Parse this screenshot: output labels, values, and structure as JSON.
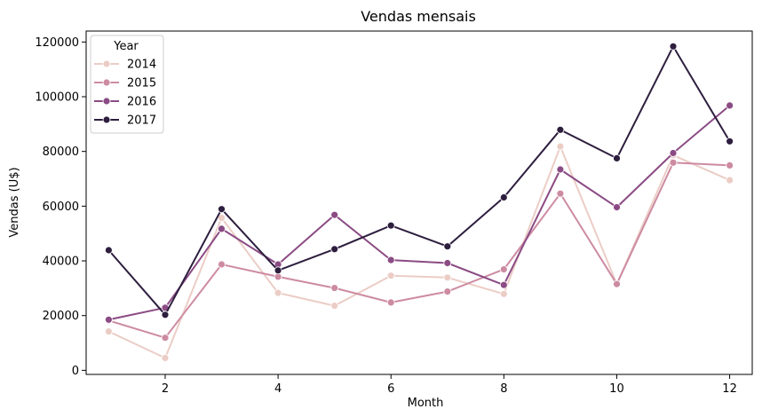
{
  "chart_data": {
    "type": "line",
    "title": "Vendas mensais",
    "xlabel": "Month",
    "ylabel": "Vendas (U$)",
    "x": [
      1,
      2,
      3,
      4,
      5,
      6,
      7,
      8,
      9,
      10,
      11,
      12
    ],
    "xlim": [
      0.6,
      12.4
    ],
    "ylim": [
      -1500,
      124000
    ],
    "xticks": [
      2,
      4,
      6,
      8,
      10,
      12
    ],
    "yticks": [
      0,
      20000,
      40000,
      60000,
      80000,
      100000,
      120000
    ],
    "grid": false,
    "legend": {
      "title": "Year",
      "placement": "top-left"
    },
    "series": [
      {
        "name": "2014",
        "color": "#ebcdc6",
        "values": [
          14200,
          4500,
          55700,
          28300,
          23600,
          34600,
          33900,
          27900,
          81800,
          31500,
          78600,
          69500
        ]
      },
      {
        "name": "2015",
        "color": "#cd8ba2",
        "values": [
          18200,
          11900,
          38700,
          34200,
          30100,
          24800,
          28800,
          36900,
          64600,
          31500,
          75900,
          74900
        ]
      },
      {
        "name": "2016",
        "color": "#8b4b84",
        "values": [
          18500,
          22900,
          51700,
          38700,
          56800,
          40300,
          39200,
          31200,
          73400,
          59600,
          79400,
          96800
        ]
      },
      {
        "name": "2017",
        "color": "#2d1e3e",
        "values": [
          43900,
          20300,
          58900,
          36500,
          44300,
          52900,
          45300,
          63200,
          87900,
          77500,
          118400,
          83700
        ]
      }
    ]
  }
}
